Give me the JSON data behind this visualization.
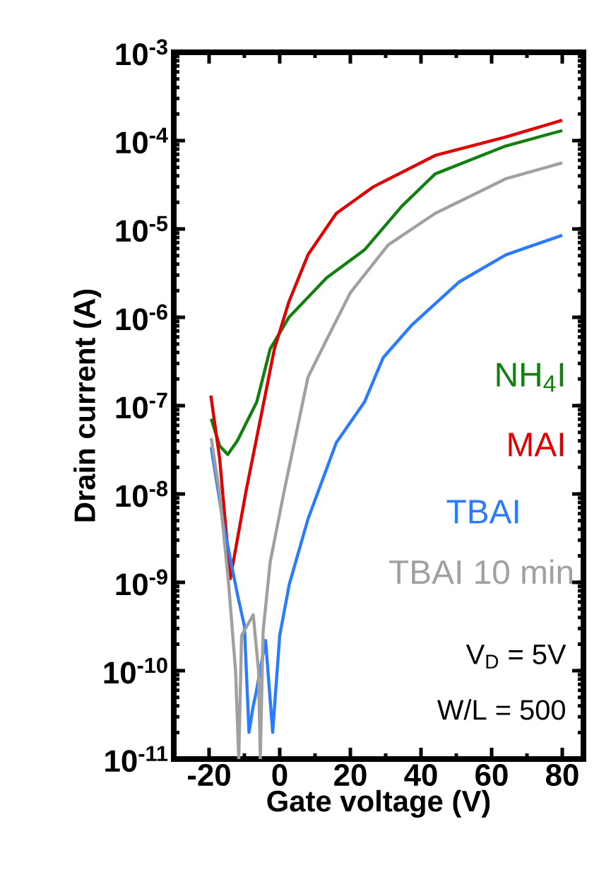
{
  "chart_data": {
    "type": "line",
    "xlabel": "Gate voltage (V)",
    "ylabel": "Drain current (A)",
    "log": "y",
    "xlim": [
      -30,
      86
    ],
    "ylim": [
      1e-11,
      0.001
    ],
    "xticks": [
      -20,
      0,
      20,
      40,
      60,
      80
    ],
    "yticks": [
      {
        "value": 1e-11,
        "label": "10$^{-11}$"
      },
      {
        "value": 1e-10,
        "label": "10$^{-10}$"
      },
      {
        "value": 1e-09,
        "label": "10$^{-9}$"
      },
      {
        "value": 1e-08,
        "label": "10$^{-8}$"
      },
      {
        "value": 1e-07,
        "label": "10$^{-7}$"
      },
      {
        "value": 1e-06,
        "label": "10$^{-6}$"
      },
      {
        "value": 1e-05,
        "label": "10$^{-5}$"
      },
      {
        "value": 0.0001,
        "label": "10$^{-4}$"
      },
      {
        "value": 0.001,
        "label": "10$^{-3}$"
      }
    ],
    "annotations": [
      "V$_{D}$ = 5V",
      "W/L = 500"
    ],
    "series": [
      {
        "name": "NH$_{4}$I",
        "color": "#118011",
        "x": [
          -19.4,
          -17,
          -14.7,
          -12,
          -6.5,
          -2.7,
          2.6,
          13.3,
          24,
          34.5,
          44,
          64,
          80
        ],
        "values": [
          7.1e-08,
          3.5e-08,
          2.8e-08,
          4e-08,
          1.1e-07,
          4.4e-07,
          1e-06,
          2.8e-06,
          5.8e-06,
          1.8e-05,
          4.2e-05,
          8.7e-05,
          0.00013
        ]
      },
      {
        "name": "MAI",
        "color": "#e00000",
        "x": [
          -19.5,
          -17,
          -14,
          -9.5,
          -4.5,
          -1.5,
          2.6,
          8,
          16,
          26.5,
          44,
          64,
          80
        ],
        "values": [
          1.3e-07,
          2.5e-08,
          1.1e-09,
          1.1e-08,
          1.1e-07,
          4.4e-07,
          1.5e-06,
          5.1e-06,
          1.5e-05,
          3e-05,
          6.8e-05,
          0.00011,
          0.00017
        ]
      },
      {
        "name": "TBAI",
        "color": "#2a7bff",
        "x": [
          -19.4,
          -16,
          -12,
          -10,
          -8.7,
          -7.5,
          -6.7,
          -4,
          -2,
          0,
          2.7,
          8,
          16,
          24,
          29.3,
          37.3,
          50.7,
          64,
          80
        ],
        "values": [
          3.4e-08,
          4.7e-09,
          7.4e-10,
          3.2e-10,
          2e-11,
          4e-11,
          5.6e-11,
          2.2e-10,
          2e-11,
          2.5e-10,
          9.5e-10,
          5.2e-09,
          3.8e-08,
          1.1e-07,
          3.5e-07,
          8.1e-07,
          2.5e-06,
          5.1e-06,
          8.5e-06
        ]
      },
      {
        "name": "TBAI 10 min",
        "color": "#a0a0a0",
        "x": [
          -19.4,
          -17,
          -14.5,
          -12.5,
          -11.6,
          -10.8,
          -7.5,
          -6,
          -5.5,
          -4.7,
          -2.7,
          1.3,
          8,
          13.3,
          20,
          30.7,
          44,
          64,
          80
        ],
        "values": [
          4.3e-08,
          1e-08,
          1e-09,
          1e-10,
          1e-11,
          2.5e-10,
          4.3e-10,
          1e-10,
          1e-11,
          2.8e-10,
          1.7e-09,
          1.1e-08,
          2.1e-07,
          5.6e-07,
          1.9e-06,
          6.6e-06,
          1.5e-05,
          3.7e-05,
          5.6e-05
        ]
      }
    ]
  }
}
